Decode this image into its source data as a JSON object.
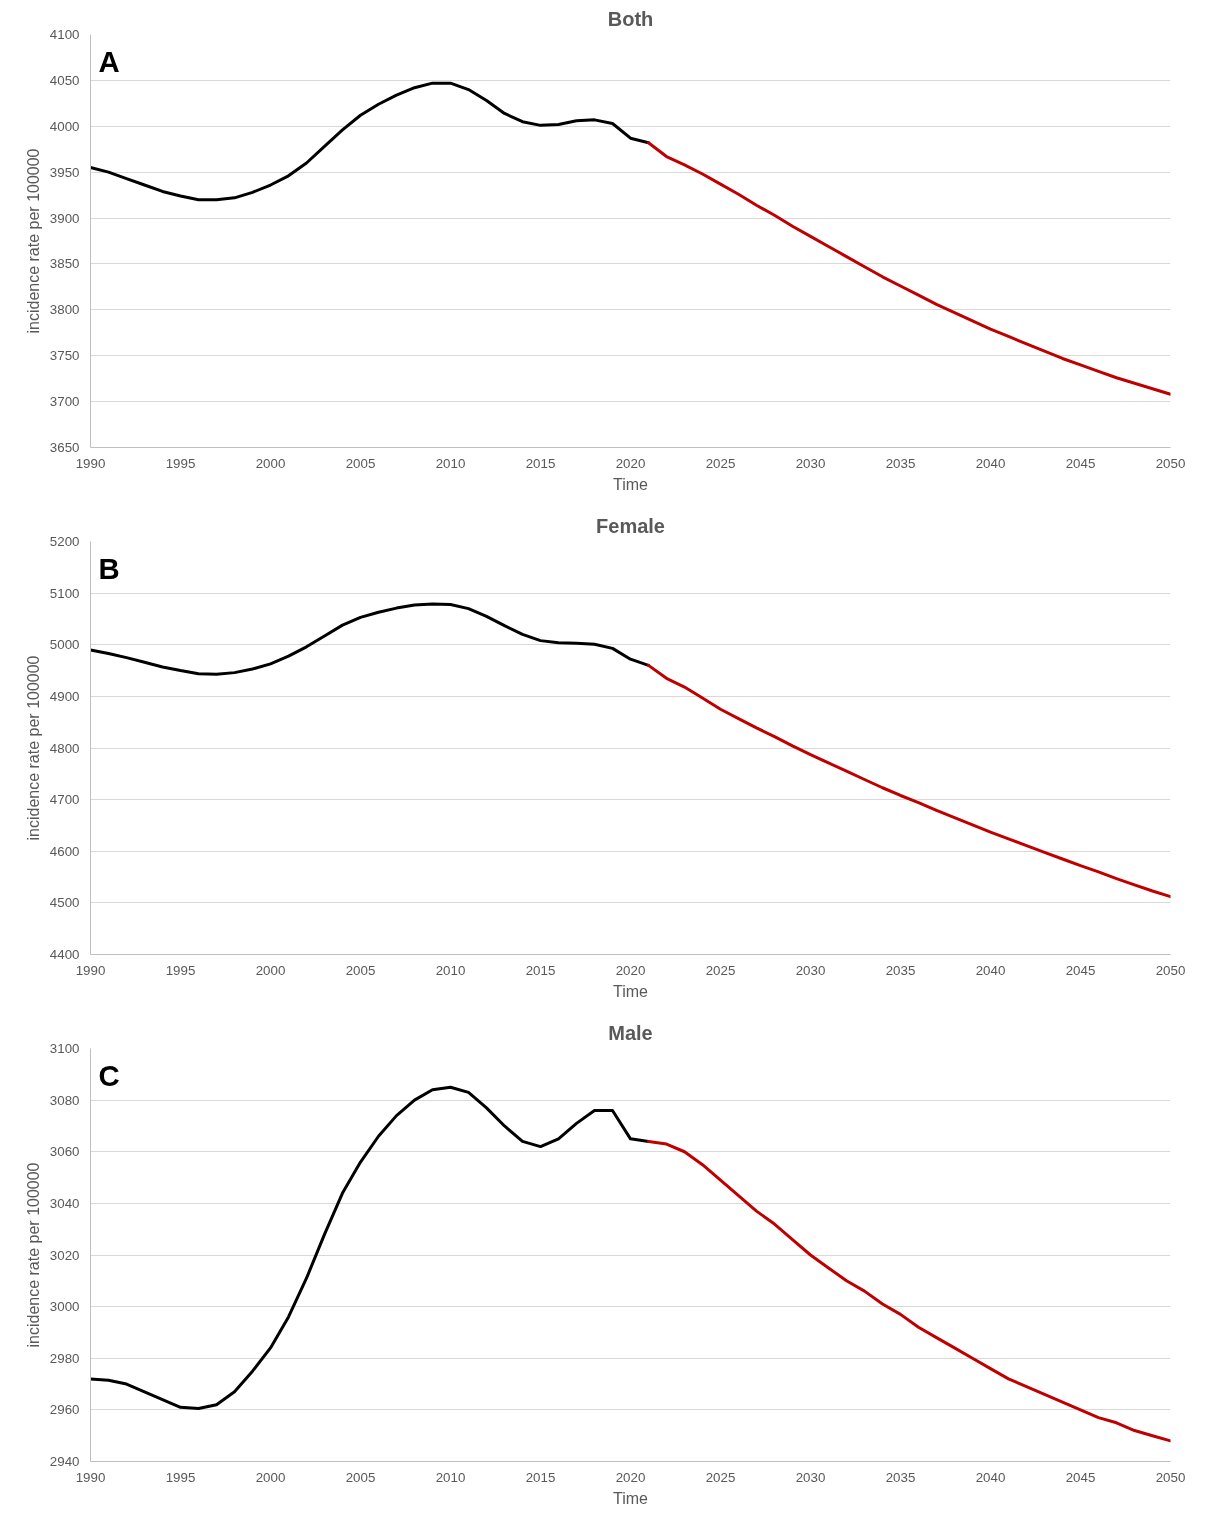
{
  "chart_data": [
    {
      "type": "line",
      "title": "Both",
      "xlabel": "Time",
      "ylabel": "incidence rate per 100000",
      "annotations": [
        "A"
      ],
      "xlim": [
        1990,
        2050
      ],
      "xticks": [
        1990,
        1995,
        2000,
        2005,
        2010,
        2015,
        2020,
        2025,
        2030,
        2035,
        2040,
        2045,
        2050
      ],
      "ylim": [
        3650,
        4100
      ],
      "yticks": [
        3650,
        3700,
        3750,
        3800,
        3850,
        3900,
        3950,
        4000,
        4050,
        4100
      ],
      "grid": "y",
      "line_style": "solid",
      "series": [
        {
          "color": "#000000",
          "x": [
            1990,
            1991,
            1992,
            1993,
            1994,
            1995,
            1996,
            1997,
            1998,
            1999,
            2000,
            2001,
            2002,
            2003,
            2004,
            2005,
            2006,
            2007,
            2008,
            2009,
            2010,
            2011,
            2012,
            2013,
            2014,
            2015,
            2016,
            2017,
            2018,
            2019,
            2020,
            2021
          ],
          "values": [
            3955,
            3950,
            3943,
            3936,
            3929,
            3924,
            3920,
            3920,
            3922,
            3928,
            3936,
            3946,
            3960,
            3978,
            3996,
            4012,
            4024,
            4034,
            4042,
            4047,
            4047,
            4040,
            4028,
            4014,
            4005,
            4001,
            4002,
            4006,
            4007,
            4003,
            3987,
            3982
          ]
        },
        {
          "color": "#c00000",
          "x": [
            2021,
            2022,
            2023,
            2024,
            2025,
            2026,
            2027,
            2028,
            2029,
            2030,
            2031,
            2032,
            2033,
            2034,
            2035,
            2036,
            2037,
            2038,
            2039,
            2040,
            2041,
            2042,
            2043,
            2044,
            2045,
            2046,
            2047,
            2048,
            2049,
            2050
          ],
          "values": [
            3982,
            3967,
            3958,
            3948,
            3937,
            3926,
            3914,
            3903,
            3891,
            3880,
            3869,
            3858,
            3847,
            3836,
            3826,
            3816,
            3806,
            3797,
            3788,
            3779,
            3771,
            3763,
            3755,
            3747,
            3740,
            3733,
            3726,
            3720,
            3714,
            3708
          ]
        }
      ]
    },
    {
      "type": "line",
      "title": "Female",
      "xlabel": "Time",
      "ylabel": "incidence rate per 100000",
      "annotations": [
        "B"
      ],
      "xlim": [
        1990,
        2050
      ],
      "xticks": [
        1990,
        1995,
        2000,
        2005,
        2010,
        2015,
        2020,
        2025,
        2030,
        2035,
        2040,
        2045,
        2050
      ],
      "ylim": [
        4400,
        5200
      ],
      "yticks": [
        4400,
        4500,
        4600,
        4700,
        4800,
        4900,
        5000,
        5100,
        5200
      ],
      "grid": "y",
      "line_style": "solid",
      "series": [
        {
          "color": "#000000",
          "x": [
            1990,
            1991,
            1992,
            1993,
            1994,
            1995,
            1996,
            1997,
            1998,
            1999,
            2000,
            2001,
            2002,
            2003,
            2004,
            2005,
            2006,
            2007,
            2008,
            2009,
            2010,
            2011,
            2012,
            2013,
            2014,
            2015,
            2016,
            2017,
            2018,
            2019,
            2020,
            2021
          ],
          "values": [
            4990,
            4983,
            4975,
            4966,
            4957,
            4950,
            4944,
            4943,
            4946,
            4953,
            4963,
            4978,
            4996,
            5017,
            5038,
            5053,
            5063,
            5071,
            5077,
            5079,
            5078,
            5070,
            5055,
            5037,
            5020,
            5008,
            5004,
            5003,
            5001,
            4993,
            4972,
            4960
          ]
        },
        {
          "color": "#c00000",
          "x": [
            2021,
            2022,
            2023,
            2024,
            2025,
            2026,
            2027,
            2028,
            2029,
            2030,
            2031,
            2032,
            2033,
            2034,
            2035,
            2036,
            2037,
            2038,
            2039,
            2040,
            2041,
            2042,
            2043,
            2044,
            2045,
            2046,
            2047,
            2048,
            2049,
            2050
          ],
          "values": [
            4960,
            4935,
            4918,
            4897,
            4875,
            4857,
            4839,
            4822,
            4804,
            4787,
            4771,
            4755,
            4739,
            4723,
            4708,
            4694,
            4679,
            4665,
            4651,
            4637,
            4624,
            4611,
            4598,
            4585,
            4572,
            4560,
            4547,
            4535,
            4523,
            4512
          ]
        }
      ]
    },
    {
      "type": "line",
      "title": "Male",
      "xlabel": "Time",
      "ylabel": "incidence rate per 100000",
      "annotations": [
        "C"
      ],
      "xlim": [
        1990,
        2050
      ],
      "xticks": [
        1990,
        1995,
        2000,
        2005,
        2010,
        2015,
        2020,
        2025,
        2030,
        2035,
        2040,
        2045,
        2050
      ],
      "ylim": [
        2940,
        3100
      ],
      "yticks": [
        2940,
        2960,
        2980,
        3000,
        3020,
        3040,
        3060,
        3080,
        3100
      ],
      "grid": "y",
      "line_style": "solid",
      "series": [
        {
          "color": "#000000",
          "x": [
            1990,
            1991,
            1992,
            1993,
            1994,
            1995,
            1996,
            1997,
            1998,
            1999,
            2000,
            2001,
            2002,
            2003,
            2004,
            2005,
            2006,
            2007,
            2008,
            2009,
            2010,
            2011,
            2012,
            2013,
            2014,
            2015,
            2016,
            2017,
            2018,
            2019,
            2020,
            2021
          ],
          "values": [
            2972,
            2971.5,
            2970,
            2967,
            2964,
            2961,
            2960.5,
            2962,
            2967,
            2975,
            2984,
            2996,
            3011,
            3028,
            3044,
            3056,
            3066,
            3074,
            3080,
            3084,
            3085,
            3083,
            3077,
            3070,
            3064,
            3062,
            3065,
            3071,
            3076,
            3076,
            3065,
            3064
          ]
        },
        {
          "color": "#c00000",
          "x": [
            2021,
            2022,
            2023,
            2024,
            2025,
            2026,
            2027,
            2028,
            2029,
            2030,
            2031,
            2032,
            2033,
            2034,
            2035,
            2036,
            2037,
            2038,
            2039,
            2040,
            2041,
            2042,
            2043,
            2044,
            2045,
            2046,
            2047,
            2048,
            2049,
            2050
          ],
          "values": [
            3064,
            3063,
            3060,
            3055,
            3049,
            3043,
            3037,
            3032,
            3026,
            3020,
            3015,
            3010,
            3006,
            3001,
            2997,
            2992,
            2988,
            2984,
            2980,
            2976,
            2972,
            2969,
            2966,
            2963,
            2960,
            2957,
            2955,
            2952,
            2950,
            2948
          ]
        }
      ]
    }
  ]
}
